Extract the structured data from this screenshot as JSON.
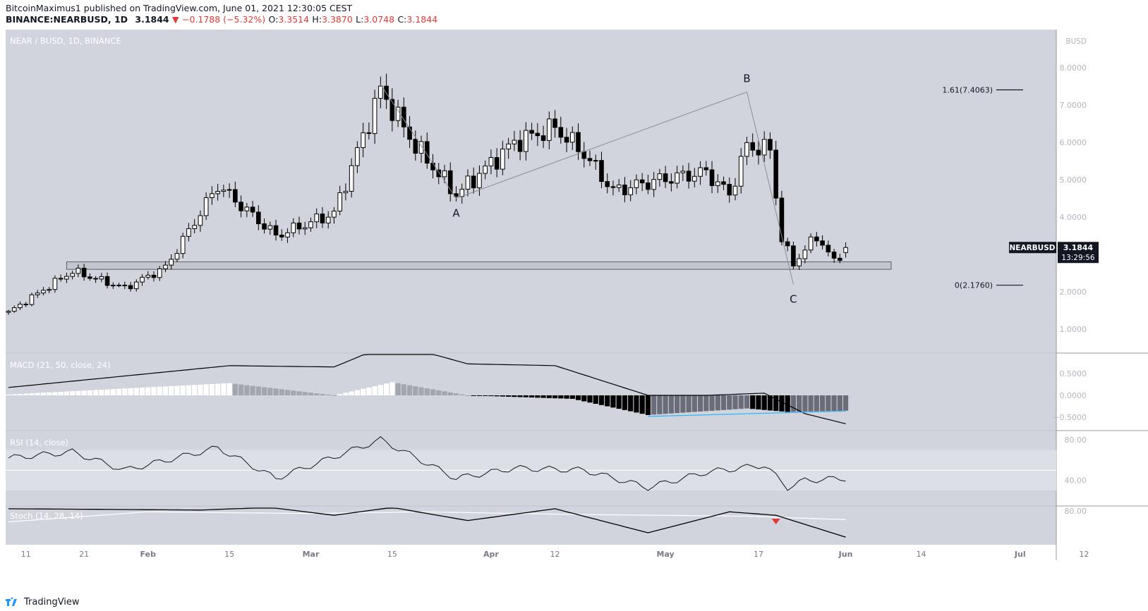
{
  "header": {
    "publisher": "BitcoinMaximus1",
    "published_text": "published on TradingView.com, June 01, 2021 12:30:05 CEST",
    "symbol": "BINANCE:NEARBUSD, 1D",
    "last": "3.1844",
    "change": "−0.1788 (−5.32%)",
    "change_arrow": "▼",
    "o_label": "O:",
    "o": "3.3514",
    "h_label": "H:",
    "h": "3.3870",
    "l_label": "L:",
    "l": "3.0748",
    "c_label": "C:",
    "c": "3.1844"
  },
  "chart_title": "NEAR / BUSD, 1D, BINANCE",
  "currency": "BUSD",
  "price_axis_labels": [
    "8.0000",
    "7.0000",
    "6.0000",
    "5.0000",
    "4.0000",
    "3.0000",
    "2.0000",
    "1.0000"
  ],
  "price_badge": {
    "symbol": "NEARBUSD",
    "price": "3.1844",
    "countdown": "13:29:56"
  },
  "fib_levels": [
    {
      "label": "1.61(7.4063)",
      "value": 7.4063
    },
    {
      "label": "0(2.1760)",
      "value": 2.176
    }
  ],
  "wave_labels": [
    {
      "label": "A",
      "x": "Mar 26",
      "y": 4.5
    },
    {
      "label": "B",
      "x": "May 15",
      "y": 7.35
    },
    {
      "label": "C",
      "x": "May 23",
      "y": 2.2
    }
  ],
  "support_zone": {
    "low": 2.6,
    "high": 2.8
  },
  "macd": {
    "title": "MACD (21, 50, close, 24)",
    "axis_labels": [
      "0.5000",
      "0.0000",
      "−0.5000"
    ]
  },
  "rsi": {
    "title": "RSI (14, close)",
    "axis_labels": [
      "80.00",
      "40.00"
    ],
    "band": [
      30,
      70
    ]
  },
  "stoch": {
    "title": "Stoch (14, 28, 14)",
    "axis_labels": [
      "80.00"
    ]
  },
  "time_axis_labels": [
    "11",
    "21",
    "Feb",
    "15",
    "Mar",
    "15",
    "Apr",
    "12",
    "May",
    "17",
    "Jun",
    "14",
    "Jul",
    "12"
  ],
  "footer": {
    "brand": "TradingView"
  },
  "colors": {
    "bg": "#d1d4dc",
    "up": "#ffffff",
    "down": "#000000",
    "axis_bg": "#ffffff",
    "badge": "#131722",
    "arrow": "#e53935",
    "divergence": "#29b6f6"
  },
  "chart_data": {
    "type": "candlestick",
    "title": "NEAR / BUSD, 1D, BINANCE",
    "x_start": "2021-01-08",
    "x_range": [
      "2021-01-07",
      "2021-07-14"
    ],
    "ylim": [
      0.4,
      8.6
    ],
    "pivots": [
      {
        "date": "2021-01-08",
        "value": 1.45
      },
      {
        "date": "2021-01-19",
        "value": 2.55
      },
      {
        "date": "2021-01-28",
        "value": 2.1
      },
      {
        "date": "2021-02-04",
        "value": 2.65
      },
      {
        "date": "2021-02-13",
        "value": 4.85
      },
      {
        "date": "2021-02-23",
        "value": 3.5
      },
      {
        "date": "2021-03-05",
        "value": 4.1
      },
      {
        "date": "2021-03-13",
        "value": 7.4
      },
      {
        "date": "2021-03-19",
        "value": 5.9
      },
      {
        "date": "2021-03-26",
        "value": 4.6
      },
      {
        "date": "2021-04-05",
        "value": 6.0
      },
      {
        "date": "2021-04-12",
        "value": 6.4
      },
      {
        "date": "2021-04-17",
        "value": 5.7
      },
      {
        "date": "2021-04-22",
        "value": 4.7
      },
      {
        "date": "2021-04-30",
        "value": 5.0
      },
      {
        "date": "2021-05-08",
        "value": 5.2
      },
      {
        "date": "2021-05-12",
        "value": 4.6
      },
      {
        "date": "2021-05-15",
        "value": 5.9
      },
      {
        "date": "2021-05-19",
        "value": 5.8
      },
      {
        "date": "2021-05-21",
        "value": 3.4
      },
      {
        "date": "2021-05-23",
        "value": 2.75
      },
      {
        "date": "2021-05-27",
        "value": 3.5
      },
      {
        "date": "2021-05-30",
        "value": 2.8
      },
      {
        "date": "2021-06-01",
        "value": 3.1844
      }
    ],
    "indicator_pivots": {
      "macd_hist": [
        {
          "date": "2021-01-08",
          "value": 0.02
        },
        {
          "date": "2021-02-15",
          "value": 0.28
        },
        {
          "date": "2021-03-05",
          "value": 0.0
        },
        {
          "date": "2021-03-15",
          "value": 0.3
        },
        {
          "date": "2021-03-28",
          "value": 0.0
        },
        {
          "date": "2021-04-15",
          "value": -0.08
        },
        {
          "date": "2021-04-28",
          "value": -0.45
        },
        {
          "date": "2021-05-15",
          "value": -0.3
        },
        {
          "date": "2021-05-22",
          "value": -0.38
        },
        {
          "date": "2021-06-01",
          "value": -0.35
        }
      ],
      "macd_line": [
        {
          "date": "2021-01-08",
          "value": 0.18
        },
        {
          "date": "2021-02-15",
          "value": 0.68
        },
        {
          "date": "2021-03-05",
          "value": 0.65
        },
        {
          "date": "2021-03-15",
          "value": 1.2
        },
        {
          "date": "2021-03-28",
          "value": 0.72
        },
        {
          "date": "2021-04-12",
          "value": 0.68
        },
        {
          "date": "2021-04-28",
          "value": 0.0
        },
        {
          "date": "2021-05-08",
          "value": 0.0
        },
        {
          "date": "2021-05-18",
          "value": 0.05
        },
        {
          "date": "2021-05-25",
          "value": -0.42
        },
        {
          "date": "2021-06-01",
          "value": -0.65
        }
      ],
      "rsi": [
        {
          "date": "2021-01-08",
          "value": 62
        },
        {
          "date": "2021-01-19",
          "value": 68
        },
        {
          "date": "2021-01-28",
          "value": 50
        },
        {
          "date": "2021-02-13",
          "value": 72
        },
        {
          "date": "2021-02-23",
          "value": 42
        },
        {
          "date": "2021-03-13",
          "value": 80
        },
        {
          "date": "2021-03-26",
          "value": 42
        },
        {
          "date": "2021-04-05",
          "value": 52
        },
        {
          "date": "2021-04-17",
          "value": 50
        },
        {
          "date": "2021-04-28",
          "value": 33
        },
        {
          "date": "2021-05-08",
          "value": 48
        },
        {
          "date": "2021-05-18",
          "value": 55
        },
        {
          "date": "2021-05-22",
          "value": 33
        },
        {
          "date": "2021-05-25",
          "value": 40
        },
        {
          "date": "2021-06-01",
          "value": 42
        }
      ],
      "stoch_k": [
        {
          "date": "2021-01-08",
          "value": 85
        },
        {
          "date": "2021-02-10",
          "value": 82
        },
        {
          "date": "2021-02-22",
          "value": 88
        },
        {
          "date": "2021-03-05",
          "value": 70
        },
        {
          "date": "2021-03-15",
          "value": 88
        },
        {
          "date": "2021-03-28",
          "value": 58
        },
        {
          "date": "2021-04-12",
          "value": 85
        },
        {
          "date": "2021-04-28",
          "value": 30
        },
        {
          "date": "2021-05-12",
          "value": 78
        },
        {
          "date": "2021-05-20",
          "value": 70
        },
        {
          "date": "2021-06-01",
          "value": 20
        }
      ],
      "stoch_d": [
        {
          "date": "2021-01-08",
          "value": 55
        },
        {
          "date": "2021-02-01",
          "value": 78
        },
        {
          "date": "2021-03-01",
          "value": 74
        },
        {
          "date": "2021-03-20",
          "value": 78
        },
        {
          "date": "2021-04-15",
          "value": 72
        },
        {
          "date": "2021-05-15",
          "value": 68
        },
        {
          "date": "2021-06-01",
          "value": 60
        }
      ]
    }
  }
}
